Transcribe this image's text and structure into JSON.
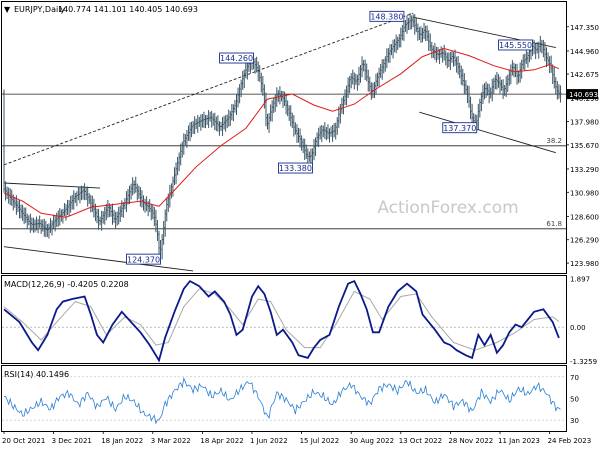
{
  "chart_data": [
    {
      "type": "candlestick",
      "title": "EURJPY,Daily",
      "ohlc_header": "140.774 141.101 140.405 140.693",
      "watermark": "ActionForex.com",
      "last_price": "140.693",
      "ylim": [
        123.0,
        149.8
      ],
      "y_ticks": [
        "147.350",
        "144.960",
        "142.675",
        "140.290",
        "137.980",
        "135.670",
        "133.290",
        "130.980",
        "128.600",
        "126.290",
        "123.980"
      ],
      "x_labels": [
        "20 Oct 2021",
        "3 Dec 2021",
        "18 Jan 2022",
        "3 Mar 2022",
        "18 Apr 2022",
        "1 Jun 2022",
        "15 Jul 2022",
        "30 Aug 2022",
        "13 Oct 2022",
        "28 Nov 2022",
        "11 Jan 2023",
        "24 Feb 2023"
      ],
      "x_label_ticks": [
        0,
        32,
        64,
        96,
        128,
        160,
        192,
        224,
        256,
        288,
        320,
        352
      ],
      "close_series": [
        [
          0,
          131.4
        ],
        [
          6,
          130.2
        ],
        [
          12,
          129.0
        ],
        [
          18,
          127.8
        ],
        [
          24,
          127.9
        ],
        [
          28,
          127.2
        ],
        [
          34,
          128.3
        ],
        [
          40,
          129.2
        ],
        [
          46,
          130.5
        ],
        [
          52,
          131.2
        ],
        [
          58,
          129.5
        ],
        [
          62,
          128.0
        ],
        [
          68,
          129.6
        ],
        [
          72,
          128.2
        ],
        [
          78,
          129.8
        ],
        [
          84,
          131.9
        ],
        [
          90,
          130.0
        ],
        [
          94,
          129.5
        ],
        [
          97,
          128.8
        ],
        [
          99,
          127.5
        ],
        [
          101,
          124.8
        ],
        [
          103,
          126.8
        ],
        [
          105,
          129.5
        ],
        [
          108,
          131.2
        ],
        [
          112,
          133.6
        ],
        [
          116,
          135.9
        ],
        [
          122,
          137.6
        ],
        [
          128,
          138.1
        ],
        [
          134,
          138.4
        ],
        [
          140,
          137.4
        ],
        [
          146,
          138.5
        ],
        [
          150,
          139.7
        ],
        [
          153,
          141.5
        ],
        [
          156,
          142.9
        ],
        [
          158,
          143.6
        ],
        [
          161,
          144.0
        ],
        [
          164,
          143.2
        ],
        [
          168,
          140.9
        ],
        [
          170,
          137.5
        ],
        [
          173,
          139.2
        ],
        [
          177,
          140.8
        ],
        [
          181,
          140.2
        ],
        [
          185,
          138.6
        ],
        [
          188,
          137.2
        ],
        [
          192,
          136.1
        ],
        [
          196,
          134.5
        ],
        [
          199,
          134.6
        ],
        [
          202,
          136.3
        ],
        [
          206,
          137.2
        ],
        [
          210,
          136.8
        ],
        [
          214,
          137.1
        ],
        [
          217,
          139.0
        ],
        [
          221,
          140.7
        ],
        [
          224,
          142.4
        ],
        [
          228,
          141.9
        ],
        [
          232,
          143.9
        ],
        [
          235,
          142.1
        ],
        [
          238,
          140.8
        ],
        [
          241,
          142.2
        ],
        [
          244,
          143.2
        ],
        [
          248,
          144.6
        ],
        [
          252,
          145.5
        ],
        [
          256,
          146.3
        ],
        [
          259,
          147.5
        ],
        [
          262,
          147.9
        ],
        [
          264,
          148.1
        ],
        [
          266,
          147.3
        ],
        [
          269,
          146.5
        ],
        [
          272,
          147.1
        ],
        [
          276,
          145.2
        ],
        [
          280,
          144.6
        ],
        [
          284,
          144.8
        ],
        [
          287,
          143.9
        ],
        [
          290,
          144.5
        ],
        [
          294,
          143.2
        ],
        [
          297,
          141.8
        ],
        [
          300,
          140.5
        ],
        [
          302,
          138.5
        ],
        [
          305,
          137.6
        ],
        [
          308,
          140.3
        ],
        [
          311,
          141.4
        ],
        [
          314,
          140.6
        ],
        [
          317,
          142.2
        ],
        [
          320,
          141.8
        ],
        [
          323,
          141.0
        ],
        [
          326,
          142.4
        ],
        [
          329,
          143.5
        ],
        [
          332,
          142.3
        ],
        [
          335,
          143.9
        ],
        [
          338,
          144.3
        ],
        [
          341,
          145.5
        ],
        [
          344,
          145.0
        ],
        [
          347,
          145.8
        ],
        [
          350,
          144.4
        ],
        [
          353,
          143.6
        ],
        [
          356,
          141.6
        ],
        [
          358,
          140.8
        ]
      ],
      "moving_average": [
        [
          0,
          130.9
        ],
        [
          12,
          130.1
        ],
        [
          24,
          128.9
        ],
        [
          40,
          128.5
        ],
        [
          56,
          129.5
        ],
        [
          72,
          129.8
        ],
        [
          88,
          130.1
        ],
        [
          100,
          129.6
        ],
        [
          110,
          131.2
        ],
        [
          124,
          133.5
        ],
        [
          140,
          135.6
        ],
        [
          156,
          137.3
        ],
        [
          170,
          140.2
        ],
        [
          186,
          140.7
        ],
        [
          200,
          139.6
        ],
        [
          212,
          139.0
        ],
        [
          226,
          139.7
        ],
        [
          240,
          141.2
        ],
        [
          256,
          142.7
        ],
        [
          270,
          144.4
        ],
        [
          284,
          145.2
        ],
        [
          300,
          144.5
        ],
        [
          316,
          143.5
        ],
        [
          330,
          142.9
        ],
        [
          342,
          143.1
        ],
        [
          352,
          143.6
        ],
        [
          358,
          143.2
        ]
      ],
      "trendlines": [
        {
          "from": [
            0,
            133.7
          ],
          "to": [
            264,
            148.7
          ],
          "style": "dashed"
        },
        {
          "from": [
            0,
            131.9
          ],
          "to": [
            62,
            131.4
          ]
        },
        {
          "from": [
            0,
            125.6
          ],
          "to": [
            122,
            123.2
          ]
        },
        {
          "from": [
            264,
            148.3
          ],
          "to": [
            356,
            145.3
          ]
        },
        {
          "from": [
            268,
            138.9
          ],
          "to": [
            356,
            134.9
          ]
        }
      ],
      "horizontal_levels": [
        {
          "value": 135.58,
          "label": "38.2"
        },
        {
          "value": 127.37,
          "label": "61.8"
        },
        {
          "value": 140.693,
          "label": ""
        }
      ],
      "annotations": [
        {
          "text": "148.380",
          "x": 258,
          "y": 148.38
        },
        {
          "text": "144.260",
          "x": 161,
          "y": 144.26
        },
        {
          "text": "145.550",
          "x": 341,
          "y": 145.55
        },
        {
          "text": "137.370",
          "x": 305,
          "y": 137.37
        },
        {
          "text": "133.380",
          "x": 199,
          "y": 133.38
        },
        {
          "text": "124.370",
          "x": 101,
          "y": 124.37
        }
      ]
    },
    {
      "type": "line",
      "title": "MACD(12,26,9) -0.4205 0.2208",
      "ylim": [
        -1.4,
        2.0
      ],
      "y_ticks": [
        "1.897",
        "0.00",
        "-1.3259"
      ],
      "zero_label": "0.00",
      "macd": [
        [
          0,
          0.7
        ],
        [
          10,
          0.2
        ],
        [
          18,
          -0.6
        ],
        [
          22,
          -0.9
        ],
        [
          28,
          -0.3
        ],
        [
          34,
          0.7
        ],
        [
          38,
          1.0
        ],
        [
          44,
          1.1
        ],
        [
          52,
          1.2
        ],
        [
          56,
          0.5
        ],
        [
          60,
          -0.3
        ],
        [
          64,
          -0.6
        ],
        [
          70,
          0.1
        ],
        [
          76,
          0.6
        ],
        [
          82,
          0.2
        ],
        [
          88,
          -0.2
        ],
        [
          94,
          -0.7
        ],
        [
          100,
          -1.3
        ],
        [
          104,
          -0.4
        ],
        [
          110,
          0.6
        ],
        [
          116,
          1.5
        ],
        [
          120,
          1.8
        ],
        [
          126,
          1.6
        ],
        [
          132,
          1.2
        ],
        [
          136,
          1.4
        ],
        [
          142,
          1.0
        ],
        [
          146,
          0.5
        ],
        [
          150,
          -0.3
        ],
        [
          154,
          -0.1
        ],
        [
          160,
          1.2
        ],
        [
          164,
          1.6
        ],
        [
          168,
          1.3
        ],
        [
          172,
          0.6
        ],
        [
          176,
          -0.3
        ],
        [
          180,
          -0.1
        ],
        [
          186,
          -0.6
        ],
        [
          190,
          -1.1
        ],
        [
          196,
          -1.2
        ],
        [
          200,
          -0.8
        ],
        [
          204,
          -0.5
        ],
        [
          210,
          -0.3
        ],
        [
          216,
          0.8
        ],
        [
          222,
          1.7
        ],
        [
          226,
          1.8
        ],
        [
          230,
          1.3
        ],
        [
          234,
          0.7
        ],
        [
          238,
          -0.2
        ],
        [
          242,
          -0.2
        ],
        [
          248,
          0.8
        ],
        [
          254,
          1.4
        ],
        [
          260,
          1.7
        ],
        [
          266,
          1.4
        ],
        [
          270,
          0.5
        ],
        [
          274,
          0.2
        ],
        [
          278,
          -0.1
        ],
        [
          284,
          -0.6
        ],
        [
          288,
          -0.7
        ],
        [
          292,
          -0.9
        ],
        [
          298,
          -1.1
        ],
        [
          302,
          -1.2
        ],
        [
          306,
          -0.3
        ],
        [
          310,
          -0.7
        ],
        [
          314,
          -0.3
        ],
        [
          318,
          -1.0
        ],
        [
          322,
          -0.7
        ],
        [
          326,
          -0.2
        ],
        [
          330,
          0.1
        ],
        [
          334,
          0.0
        ],
        [
          338,
          0.3
        ],
        [
          342,
          0.6
        ],
        [
          348,
          0.7
        ],
        [
          354,
          0.2
        ],
        [
          358,
          -0.42
        ]
      ],
      "signal": [
        [
          0,
          0.8
        ],
        [
          12,
          0.2
        ],
        [
          24,
          -0.5
        ],
        [
          34,
          0.2
        ],
        [
          46,
          1.0
        ],
        [
          56,
          0.8
        ],
        [
          66,
          -0.3
        ],
        [
          78,
          0.4
        ],
        [
          88,
          0.1
        ],
        [
          98,
          -0.7
        ],
        [
          106,
          -0.6
        ],
        [
          116,
          0.8
        ],
        [
          126,
          1.5
        ],
        [
          136,
          1.3
        ],
        [
          146,
          0.7
        ],
        [
          154,
          0.1
        ],
        [
          164,
          1.1
        ],
        [
          172,
          1.0
        ],
        [
          182,
          -0.1
        ],
        [
          194,
          -0.8
        ],
        [
          204,
          -0.8
        ],
        [
          214,
          0.1
        ],
        [
          226,
          1.4
        ],
        [
          236,
          1.1
        ],
        [
          244,
          0.3
        ],
        [
          256,
          1.2
        ],
        [
          266,
          1.3
        ],
        [
          276,
          0.4
        ],
        [
          290,
          -0.6
        ],
        [
          304,
          -0.9
        ],
        [
          318,
          -0.6
        ],
        [
          330,
          -0.2
        ],
        [
          342,
          0.3
        ],
        [
          354,
          0.4
        ],
        [
          358,
          0.22
        ]
      ]
    },
    {
      "type": "line",
      "title": "RSI(14) 40.1496",
      "ylim": [
        20,
        80
      ],
      "y_ticks": [
        "70",
        "50",
        "30"
      ],
      "rsi": [
        [
          0,
          52
        ],
        [
          6,
          43
        ],
        [
          12,
          35
        ],
        [
          18,
          41
        ],
        [
          24,
          47
        ],
        [
          30,
          40
        ],
        [
          36,
          52
        ],
        [
          42,
          55
        ],
        [
          48,
          44
        ],
        [
          54,
          55
        ],
        [
          60,
          42
        ],
        [
          66,
          51
        ],
        [
          72,
          40
        ],
        [
          78,
          52
        ],
        [
          84,
          47
        ],
        [
          90,
          36
        ],
        [
          96,
          32
        ],
        [
          100,
          29
        ],
        [
          104,
          45
        ],
        [
          110,
          57
        ],
        [
          116,
          66
        ],
        [
          122,
          58
        ],
        [
          128,
          62
        ],
        [
          134,
          52
        ],
        [
          140,
          57
        ],
        [
          146,
          48
        ],
        [
          152,
          58
        ],
        [
          158,
          66
        ],
        [
          164,
          52
        ],
        [
          170,
          32
        ],
        [
          176,
          55
        ],
        [
          182,
          49
        ],
        [
          188,
          39
        ],
        [
          194,
          48
        ],
        [
          200,
          56
        ],
        [
          206,
          52
        ],
        [
          212,
          44
        ],
        [
          218,
          57
        ],
        [
          224,
          63
        ],
        [
          230,
          52
        ],
        [
          236,
          45
        ],
        [
          242,
          59
        ],
        [
          248,
          63
        ],
        [
          254,
          57
        ],
        [
          260,
          66
        ],
        [
          266,
          55
        ],
        [
          272,
          58
        ],
        [
          278,
          46
        ],
        [
          284,
          54
        ],
        [
          290,
          43
        ],
        [
          296,
          48
        ],
        [
          302,
          38
        ],
        [
          308,
          56
        ],
        [
          314,
          47
        ],
        [
          320,
          58
        ],
        [
          326,
          48
        ],
        [
          332,
          59
        ],
        [
          338,
          54
        ],
        [
          344,
          62
        ],
        [
          350,
          55
        ],
        [
          356,
          42
        ],
        [
          358,
          40
        ]
      ]
    }
  ]
}
